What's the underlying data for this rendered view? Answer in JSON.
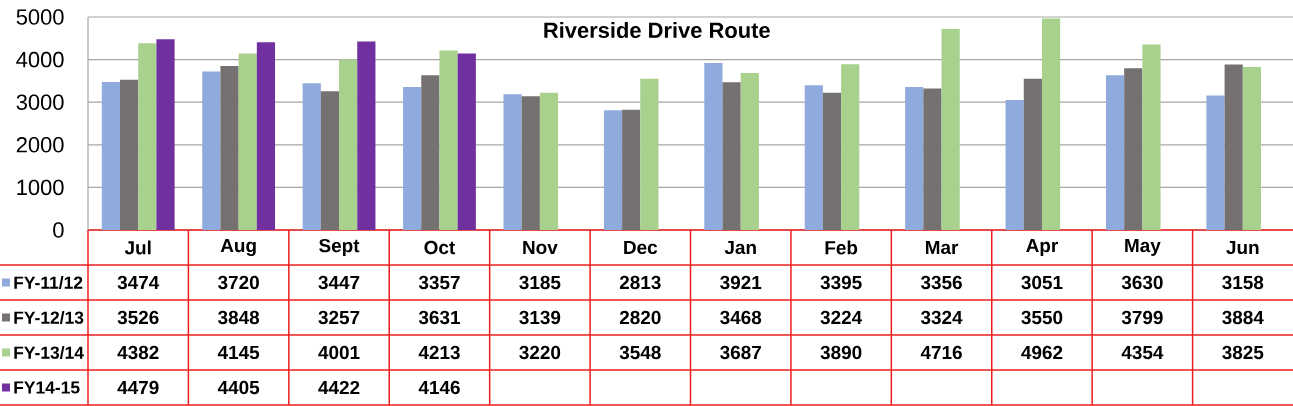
{
  "chart_data": {
    "type": "bar",
    "title": "Riverside Drive Route",
    "categories": [
      "Jul",
      "Aug",
      "Sept",
      "Oct",
      "Nov",
      "Dec",
      "Jan",
      "Feb",
      "Mar",
      "Apr",
      "May",
      "Jun"
    ],
    "series": [
      {
        "name": "FY-11/12",
        "color": "#8faadc",
        "values": [
          3474,
          3720,
          3447,
          3357,
          3185,
          2813,
          3921,
          3395,
          3356,
          3051,
          3630,
          3158
        ]
      },
      {
        "name": "FY-12/13",
        "color": "#767171",
        "values": [
          3526,
          3848,
          3257,
          3631,
          3139,
          2820,
          3468,
          3224,
          3324,
          3550,
          3799,
          3884
        ]
      },
      {
        "name": "FY-13/14",
        "color": "#a9d18e",
        "values": [
          4382,
          4145,
          4001,
          4213,
          3220,
          3548,
          3687,
          3890,
          4716,
          4962,
          4354,
          3825
        ]
      },
      {
        "name": "FY14-15",
        "color": "#7030a0",
        "values": [
          4479,
          4405,
          4422,
          4146,
          null,
          null,
          null,
          null,
          null,
          null,
          null,
          null
        ]
      }
    ],
    "ylim": [
      0,
      5000
    ],
    "yticks": [
      0,
      1000,
      2000,
      3000,
      4000,
      5000
    ],
    "grid": "y",
    "data_labels": true,
    "legend": "bottom left"
  }
}
